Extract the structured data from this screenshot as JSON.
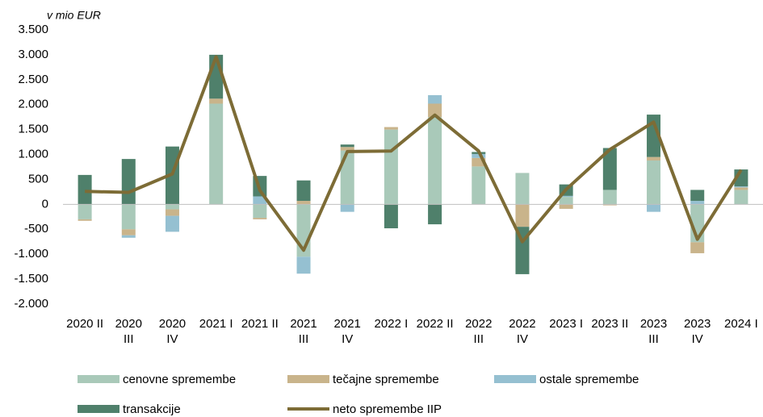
{
  "chart_data": {
    "type": "bar",
    "stacked": true,
    "y_axis_label": "v mio EUR",
    "categories": [
      "2020 II",
      "2020 III",
      "2020 IV",
      "2021 I",
      "2021 II",
      "2021 III",
      "2021 IV",
      "2022 I",
      "2022 II",
      "2022 III",
      "2022 IV",
      "2023 I",
      "2023 II",
      "2023 III",
      "2023 IV",
      "2024 I"
    ],
    "series": [
      {
        "name": "cenovne spremembe",
        "color": "#a9c9b9",
        "values": [
          -300,
          -500,
          -100,
          2020,
          -270,
          -1050,
          1080,
          1500,
          1750,
          760,
          630,
          150,
          290,
          880,
          -760,
          290
        ]
      },
      {
        "name": "tečajne spremembe",
        "color": "#c9b48b",
        "values": [
          -30,
          -120,
          -130,
          100,
          -30,
          70,
          70,
          50,
          270,
          170,
          -450,
          -90,
          -20,
          70,
          -220,
          50
        ]
      },
      {
        "name": "ostale spremembe",
        "color": "#95c0d1",
        "values": [
          0,
          -50,
          -320,
          0,
          160,
          -340,
          -150,
          0,
          170,
          80,
          0,
          20,
          0,
          -150,
          70,
          20
        ]
      },
      {
        "name": "transakcije",
        "color": "#4f806b",
        "values": [
          590,
          910,
          1160,
          880,
          410,
          410,
          50,
          -480,
          -400,
          40,
          -950,
          230,
          840,
          850,
          220,
          340
        ]
      },
      {
        "name": "neto spremembe IIP",
        "color": "#7d6c36",
        "type": "line",
        "values": [
          260,
          240,
          610,
          2960,
          280,
          -920,
          1060,
          1070,
          1790,
          1070,
          -750,
          300,
          1100,
          1650,
          -700,
          690
        ]
      }
    ],
    "ylim": [
      -2000,
      3500
    ],
    "yticks": [
      {
        "value": -2000,
        "label": "-2.000"
      },
      {
        "value": -1500,
        "label": "-1.500"
      },
      {
        "value": -1000,
        "label": "-1.000"
      },
      -500,
      0,
      500,
      {
        "value": 1000,
        "label": "1.000"
      },
      {
        "value": 1500,
        "label": "1.500"
      },
      {
        "value": 2000,
        "label": "2.000"
      },
      {
        "value": 2500,
        "label": "2.500"
      },
      {
        "value": 3000,
        "label": "3.000"
      },
      {
        "value": 3500,
        "label": "3.500"
      }
    ]
  }
}
